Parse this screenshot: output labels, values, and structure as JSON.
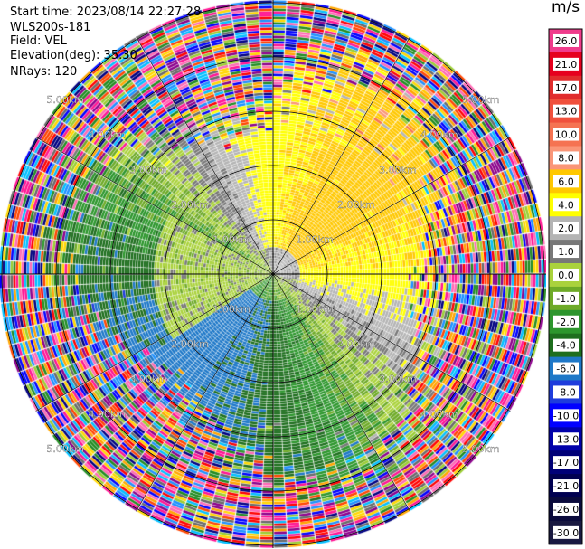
{
  "header": {
    "start_time": "Start time: 2023/08/14 22:27:28",
    "device": "WLS200s-181",
    "field": "Field: VEL",
    "elevation": "Elevation(deg): 35.30",
    "nrays": "NRays: 120"
  },
  "chart_data": {
    "type": "heatmap",
    "projection": "polar-ppi",
    "field": "VEL",
    "n_rays": 120,
    "range_rings_km": [
      1,
      2,
      3,
      4,
      5
    ],
    "ring_labels": [
      "1.00km",
      "2.00km",
      "3.00km",
      "4.00km",
      "5.00km"
    ],
    "colorbar": {
      "unit": "m/s",
      "ticks": [
        "26.0",
        "21.0",
        "17.0",
        "13.0",
        "10.0",
        "8.0",
        "6.0",
        "4.0",
        "2.0",
        "1.0",
        "0.0",
        "-1.0",
        "-2.0",
        "-4.0",
        "-6.0",
        "-8.0",
        "-10.0",
        "-13.0",
        "-17.0",
        "-21.0",
        "-26.0",
        "-30.0"
      ],
      "colors": [
        "#f03c8c",
        "#e6001e",
        "#e12d2d",
        "#f0503c",
        "#f57352",
        "#fa9678",
        "#ffc800",
        "#ffff00",
        "#b4b4b4",
        "#787878",
        "#aad23c",
        "#6eaa28",
        "#2d962d",
        "#1e6e1e",
        "#1e78c8",
        "#1e3cdc",
        "#0000ff",
        "#0000aa",
        "#000078",
        "#000050",
        "#0a0a3c",
        "#191941"
      ],
      "noise_colors": [
        "#ff1493",
        "#ff69b4",
        "#ff4500",
        "#ffd700",
        "#9acd32",
        "#228b22",
        "#0000ff",
        "#000080",
        "#8b008b",
        "#00bfff",
        "#ff0000",
        "#696969",
        "#ffa500",
        "#1e90ff"
      ]
    }
  }
}
